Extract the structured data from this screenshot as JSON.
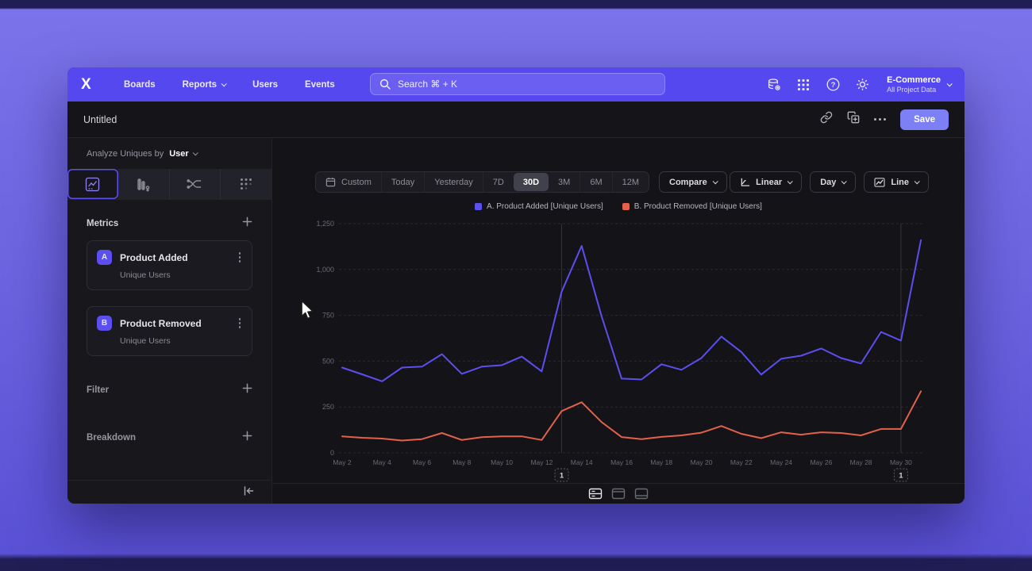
{
  "nav": {
    "logo": "X",
    "items": [
      {
        "label": "Boards",
        "has_dropdown": false
      },
      {
        "label": "Reports",
        "has_dropdown": true
      },
      {
        "label": "Users",
        "has_dropdown": false
      },
      {
        "label": "Events",
        "has_dropdown": false
      }
    ],
    "search_placeholder": "Search  ⌘ + K",
    "help_glyph": "?",
    "project": {
      "name": "E-Commerce",
      "subtitle": "All Project Data"
    }
  },
  "titlebar": {
    "title": "Untitled",
    "save_label": "Save"
  },
  "sidebar": {
    "analyze_label": "Analyze Uniques by",
    "analyze_value": "User",
    "metrics_header": "Metrics",
    "metrics": [
      {
        "badge": "A",
        "title": "Product Added",
        "subtitle": "Unique Users"
      },
      {
        "badge": "B",
        "title": "Product Removed",
        "subtitle": "Unique Users"
      }
    ],
    "filter_label": "Filter",
    "breakdown_label": "Breakdown"
  },
  "controls": {
    "ranges": [
      "Custom",
      "Today",
      "Yesterday",
      "7D",
      "30D",
      "3M",
      "6M",
      "12M"
    ],
    "active_range": "30D",
    "compare_label": "Compare",
    "scale_label": "Linear",
    "interval_label": "Day",
    "chart_type_label": "Line"
  },
  "colors": {
    "accent_purple": "#5448ee",
    "save_button": "#7c80f4",
    "series_a": "#5b4ff0",
    "series_b": "#e2614b"
  },
  "chart_data": {
    "type": "line",
    "x": [
      "May 2",
      "May 3",
      "May 4",
      "May 5",
      "May 6",
      "May 7",
      "May 8",
      "May 9",
      "May 10",
      "May 11",
      "May 12",
      "May 13",
      "May 14",
      "May 15",
      "May 16",
      "May 17",
      "May 18",
      "May 19",
      "May 20",
      "May 21",
      "May 22",
      "May 23",
      "May 24",
      "May 25",
      "May 26",
      "May 27",
      "May 28",
      "May 29",
      "May 30",
      "May 31"
    ],
    "x_labels_shown": [
      "May 2",
      "May 4",
      "May 6",
      "May 8",
      "May 10",
      "May 12",
      "May 14",
      "May 16",
      "May 18",
      "May 20",
      "May 22",
      "May 24",
      "May 26",
      "May 28",
      "May 30"
    ],
    "series": [
      {
        "name": "A. Product Added [Unique Users]",
        "color": "#5b4ff0",
        "values": [
          465,
          428,
          390,
          465,
          470,
          538,
          431,
          470,
          478,
          525,
          444,
          879,
          1129,
          745,
          405,
          400,
          483,
          453,
          517,
          634,
          550,
          427,
          513,
          530,
          569,
          517,
          487,
          659,
          612,
          1160
        ]
      },
      {
        "name": "B. Product Removed [Unique Users]",
        "color": "#e2614b",
        "values": [
          90,
          82,
          78,
          67,
          75,
          108,
          70,
          85,
          90,
          90,
          70,
          228,
          276,
          168,
          86,
          75,
          87,
          95,
          110,
          146,
          104,
          80,
          112,
          99,
          112,
          108,
          95,
          130,
          130,
          336
        ]
      }
    ],
    "ylim": [
      0,
      1250
    ],
    "yticks": [
      0,
      250,
      500,
      750,
      1000,
      1250
    ],
    "ytick_labels": [
      "0",
      "250",
      "500",
      "750",
      "1,000",
      "1,250"
    ],
    "grid": "horizontal-dashed",
    "legend_position": "top-center",
    "annotations": [
      {
        "index": 11,
        "x": "May 13",
        "label": "1"
      },
      {
        "index": 28,
        "x": "May 30",
        "label": "1"
      }
    ]
  }
}
